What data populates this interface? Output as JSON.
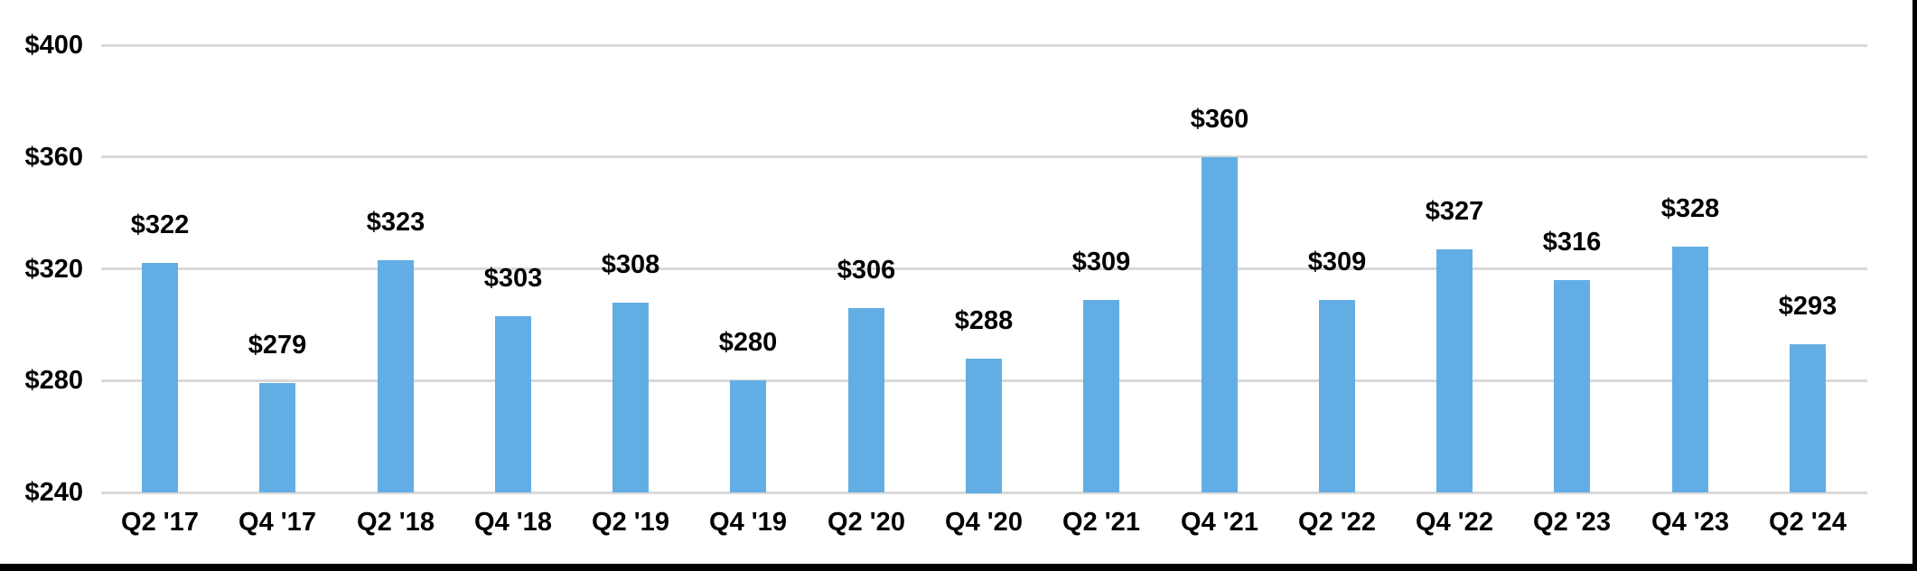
{
  "chart_data": {
    "type": "bar",
    "title": "",
    "xlabel": "",
    "ylabel": "",
    "categories": [
      "Q2 '17",
      "Q4 '17",
      "Q2 '18",
      "Q4 '18",
      "Q2 '19",
      "Q4 '19",
      "Q2 '20",
      "Q4 '20",
      "Q2 '21",
      "Q4 '21",
      "Q2 '22",
      "Q4 '22",
      "Q2 '23",
      "Q4 '23",
      "Q2 '24"
    ],
    "values": [
      322,
      279,
      323,
      303,
      308,
      280,
      306,
      288,
      309,
      360,
      309,
      327,
      316,
      328,
      293
    ],
    "data_labels": [
      "$322",
      "$279",
      "$323",
      "$303",
      "$308",
      "$280",
      "$306",
      "$288",
      "$309",
      "$360",
      "$309",
      "$327",
      "$316",
      "$328",
      "$293"
    ],
    "y_ticks": [
      {
        "value": 400,
        "label": "$400"
      },
      {
        "value": 360,
        "label": "$360"
      },
      {
        "value": 320,
        "label": "$320"
      },
      {
        "value": 280,
        "label": "$280"
      },
      {
        "value": 240,
        "label": "$240"
      }
    ],
    "ylim": [
      240,
      400
    ],
    "grid": true,
    "legend_position": "none",
    "colors": {
      "bar_fill": "#62AEE4",
      "gridline": "#D9D9D9",
      "text": "#000000",
      "background": "#FFFFFF",
      "frame_border": "#000000"
    }
  }
}
